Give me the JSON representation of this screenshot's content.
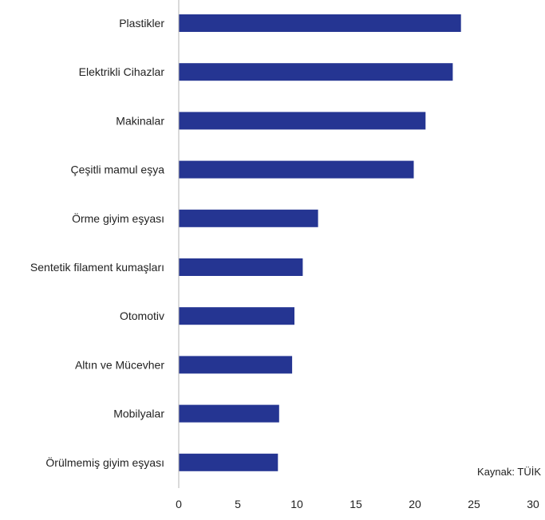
{
  "chart_data": {
    "type": "bar",
    "orientation": "horizontal",
    "categories": [
      "Plastikler",
      "Elektrikli Cihazlar",
      "Makinalar",
      "Çeşitli mamul eşya",
      "Örme giyim eşyası",
      "Sentetik filament kumaşları",
      "Otomotiv",
      "Altın ve Mücevher",
      "Mobilyalar",
      "Örülmemiş giyim eşyası"
    ],
    "values": [
      23.9,
      23.2,
      20.9,
      19.9,
      11.8,
      10.5,
      9.8,
      9.6,
      8.5,
      8.4
    ],
    "xlim": [
      0,
      30
    ],
    "xticks": [
      0,
      5,
      10,
      15,
      20,
      25,
      30
    ],
    "grid": false,
    "legend": "none",
    "source_note": "Kaynak: TÜİK"
  },
  "colors": {
    "bar": "#253592",
    "axis": "#b4b4b4",
    "text": "#222222"
  }
}
